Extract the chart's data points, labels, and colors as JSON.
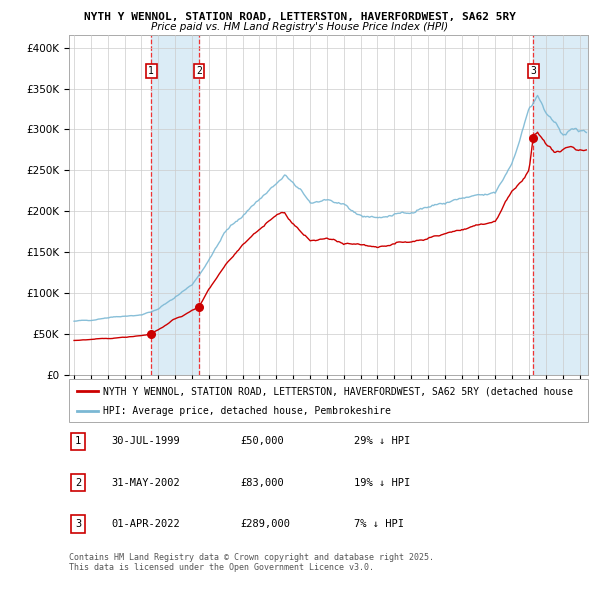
{
  "title1": "NYTH Y WENNOL, STATION ROAD, LETTERSTON, HAVERFORDWEST, SA62 5RY",
  "title2": "Price paid vs. HM Land Registry's House Price Index (HPI)",
  "ylabel_ticks": [
    "£0",
    "£50K",
    "£100K",
    "£150K",
    "£200K",
    "£250K",
    "£300K",
    "£350K",
    "£400K"
  ],
  "ytick_vals": [
    0,
    50000,
    100000,
    150000,
    200000,
    250000,
    300000,
    350000,
    400000
  ],
  "ylim": [
    0,
    415000
  ],
  "xlim_start": 1994.7,
  "xlim_end": 2025.5,
  "hpi_color": "#7bb8d4",
  "price_color": "#cc0000",
  "bg_color": "#ffffff",
  "grid_color": "#cccccc",
  "shade_color": "#d8eaf5",
  "dashed_color": "#ee3333",
  "legend_label1": "NYTH Y WENNOL, STATION ROAD, LETTERSTON, HAVERFORDWEST, SA62 5RY (detached house",
  "legend_label2": "HPI: Average price, detached house, Pembrokeshire",
  "transactions": [
    {
      "num": 1,
      "date": "30-JUL-1999",
      "price": 50000,
      "pct": "29%",
      "x_year": 1999.58
    },
    {
      "num": 2,
      "date": "31-MAY-2002",
      "price": 83000,
      "pct": "19%",
      "x_year": 2002.42
    },
    {
      "num": 3,
      "date": "01-APR-2022",
      "price": 289000,
      "pct": "7%",
      "x_year": 2022.25
    }
  ],
  "footnote1": "Contains HM Land Registry data © Crown copyright and database right 2025.",
  "footnote2": "This data is licensed under the Open Government Licence v3.0."
}
